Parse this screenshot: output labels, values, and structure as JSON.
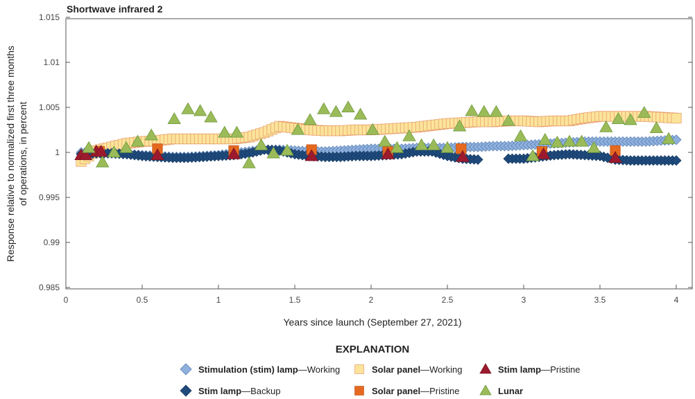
{
  "chart_data": {
    "type": "scatter",
    "title": "Shortwave infrared 2",
    "xlabel": "Years since launch (September 27, 2021)",
    "ylabel": [
      "Response relative to normalized first three months",
      "of operations, in percent"
    ],
    "xlim": [
      0,
      4.1
    ],
    "ylim": [
      0.985,
      1.015
    ],
    "xticks": [
      "0",
      "0.5",
      "1",
      "1.5",
      "2",
      "2.5",
      "3",
      "3.5",
      "4"
    ],
    "yticks": [
      "0.985",
      "0.99",
      "0.995",
      "1",
      "1.005",
      "1.01",
      "1.015"
    ],
    "grid": false,
    "legend_title": "EXPLANATION",
    "legend_position": "bottom",
    "x": [
      0.1,
      0.2,
      0.3,
      0.4,
      0.5,
      0.6,
      0.7,
      0.8,
      0.9,
      1.0,
      1.1,
      1.2,
      1.3,
      1.4,
      1.5,
      1.6,
      1.7,
      1.8,
      1.9,
      2.0,
      2.1,
      2.2,
      2.3,
      2.4,
      2.5,
      2.6,
      2.7,
      2.8,
      2.9,
      3.0,
      3.1,
      3.2,
      3.3,
      3.4,
      3.5,
      3.6,
      3.7,
      3.8,
      3.9,
      4.0
    ],
    "series": [
      {
        "name": "Stimulation (stim) lamp",
        "suffix": "—Working",
        "marker": "diamond",
        "color": "#8fb0dc",
        "edge": "#5a82b8",
        "y": [
          1.0,
          0.9999,
          0.9999,
          0.9998,
          0.9997,
          0.9996,
          0.9995,
          0.9995,
          0.9996,
          0.9997,
          0.9999,
          1.0001,
          1.0003,
          1.0003,
          1.0002,
          1.0001,
          1.0001,
          1.0002,
          1.0003,
          1.0004,
          1.0004,
          1.0004,
          1.0005,
          1.0005,
          1.0005,
          1.0006,
          1.0006,
          1.0007,
          1.0007,
          1.0008,
          1.0009,
          1.001,
          1.0011,
          1.0012,
          1.0012,
          1.0012,
          1.0012,
          1.0012,
          1.0013,
          1.0014
        ]
      },
      {
        "name": "Solar panel",
        "suffix": "—Working",
        "marker": "square",
        "color": "#fbe49a",
        "edge": "#e8a070",
        "y": [
          0.999,
          1.0002,
          1.0006,
          1.001,
          1.0012,
          1.0013,
          1.0015,
          1.0015,
          1.0015,
          1.0015,
          1.0015,
          1.0017,
          1.0022,
          1.0029,
          1.0027,
          1.0025,
          1.0024,
          1.0024,
          1.0025,
          1.0025,
          1.0026,
          1.0027,
          1.0028,
          1.003,
          1.0032,
          1.0033,
          1.0034,
          1.0034,
          1.0035,
          1.0035,
          1.0034,
          1.0035,
          1.0035,
          1.0038,
          1.004,
          1.004,
          1.004,
          1.004,
          1.0039,
          1.0038
        ]
      },
      {
        "name": "Stim lamp",
        "suffix": "—Backup",
        "marker": "diamond",
        "color": "#1f4a7c",
        "edge": "#163a63",
        "y": [
          0.9998,
          0.9999,
          0.9999,
          0.9998,
          0.9996,
          0.9995,
          0.9994,
          0.9994,
          0.9995,
          0.9996,
          0.9997,
          0.9999,
          1.0003,
          1.0002,
          0.9998,
          0.9996,
          0.9995,
          0.9995,
          0.9996,
          0.9996,
          0.9997,
          0.9998,
          1.0001,
          1.0001,
          0.9996,
          0.9993,
          0.9992,
          null,
          0.9993,
          0.9993,
          0.9995,
          0.9997,
          0.9998,
          0.9997,
          0.9996,
          0.9992,
          0.9991,
          0.9991,
          0.9991,
          0.9991
        ]
      },
      {
        "name": "Solar panel",
        "suffix": "—Pristine",
        "marker": "square",
        "color": "#e5691f",
        "edge": "#c4561a",
        "points": [
          [
            0.22,
            1.0001
          ],
          [
            0.6,
            1.0004
          ],
          [
            1.1,
            1.0002
          ],
          [
            1.61,
            1.0003
          ],
          [
            2.11,
            1.0001
          ],
          [
            2.59,
            1.0004
          ],
          [
            3.12,
            1.0001
          ],
          [
            3.6,
            1.0002
          ]
        ]
      },
      {
        "name": "Stim lamp",
        "suffix": "—Pristine",
        "marker": "triangle",
        "color": "#9c1a2e",
        "edge": "#7a1422",
        "points": [
          [
            0.1,
            0.9997
          ],
          [
            0.13,
            0.9997
          ],
          [
            0.2,
            1.0001
          ],
          [
            0.23,
            1.0001
          ],
          [
            0.6,
            0.9997
          ],
          [
            1.1,
            0.9998
          ],
          [
            1.61,
            0.9996
          ],
          [
            2.11,
            0.9998
          ],
          [
            2.6,
            0.9995
          ],
          [
            3.13,
            0.9998
          ],
          [
            3.6,
            0.9994
          ]
        ]
      },
      {
        "name": "Lunar",
        "suffix": "",
        "marker": "triangle",
        "color": "#9bbb59",
        "edge": "#6e9a3a",
        "points": [
          [
            0.15,
            1.0005
          ],
          [
            0.24,
            0.9989
          ],
          [
            0.315,
            1.0
          ],
          [
            0.395,
            1.0005
          ],
          [
            0.47,
            1.0012
          ],
          [
            0.56,
            1.0019
          ],
          [
            0.71,
            1.0037
          ],
          [
            0.8,
            1.0048
          ],
          [
            0.88,
            1.0046
          ],
          [
            0.95,
            1.0039
          ],
          [
            1.04,
            1.0022
          ],
          [
            1.12,
            1.0022
          ],
          [
            1.2,
            0.9988
          ],
          [
            1.28,
            1.0008
          ],
          [
            1.36,
            0.9999
          ],
          [
            1.45,
            1.0002
          ],
          [
            1.52,
            1.0025
          ],
          [
            1.6,
            1.0036
          ],
          [
            1.69,
            1.0048
          ],
          [
            1.77,
            1.0045
          ],
          [
            1.85,
            1.005
          ],
          [
            1.93,
            1.0042
          ],
          [
            2.01,
            1.0025
          ],
          [
            2.09,
            1.0012
          ],
          [
            2.17,
            1.0005
          ],
          [
            2.25,
            1.0018
          ],
          [
            2.33,
            1.0008
          ],
          [
            2.41,
            1.0008
          ],
          [
            2.5,
            1.0005
          ],
          [
            2.58,
            1.0029
          ],
          [
            2.66,
            1.0046
          ],
          [
            2.74,
            1.0045
          ],
          [
            2.82,
            1.0045
          ],
          [
            2.9,
            1.0035
          ],
          [
            2.98,
            1.0018
          ],
          [
            3.06,
            0.9996
          ],
          [
            3.14,
            1.0014
          ],
          [
            3.22,
            1.0011
          ],
          [
            3.3,
            1.0012
          ],
          [
            3.38,
            1.0012
          ],
          [
            3.46,
            1.0005
          ],
          [
            3.54,
            1.0028
          ],
          [
            3.62,
            1.0037
          ],
          [
            3.7,
            1.0036
          ],
          [
            3.79,
            1.0044
          ],
          [
            3.87,
            1.0027
          ],
          [
            3.95,
            1.0015
          ]
        ]
      }
    ]
  }
}
